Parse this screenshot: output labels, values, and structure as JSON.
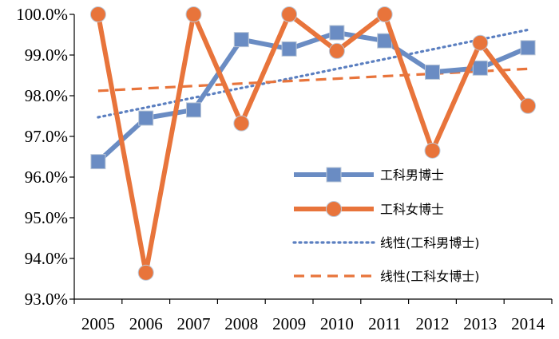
{
  "chart_data": {
    "type": "line",
    "title": "",
    "xlabel": "",
    "ylabel": "",
    "categories": [
      "2005",
      "2006",
      "2007",
      "2008",
      "2009",
      "2010",
      "2011",
      "2012",
      "2013",
      "2014"
    ],
    "ylim": [
      93.0,
      100.0
    ],
    "yticks": [
      "93.0%",
      "94.0%",
      "95.0%",
      "96.0%",
      "97.0%",
      "98.0%",
      "99.0%",
      "100.0%"
    ],
    "grid": false,
    "legend_position": "bottom-right",
    "series": [
      {
        "name": "工科男博士",
        "values": [
          96.38,
          97.45,
          97.65,
          99.38,
          99.15,
          99.55,
          99.35,
          98.58,
          98.68,
          99.18
        ],
        "color": "#6a8cc3",
        "style": "solid",
        "marker": "square"
      },
      {
        "name": "工科女博士",
        "values": [
          100.0,
          93.65,
          100.0,
          97.32,
          100.0,
          99.1,
          100.0,
          96.65,
          99.3,
          97.75
        ],
        "color": "#e8743b",
        "style": "solid",
        "marker": "circle"
      },
      {
        "name": "线性(工科男博士)",
        "values": [
          97.47,
          97.71,
          97.95,
          98.19,
          98.42,
          98.66,
          98.9,
          99.14,
          99.38,
          99.62
        ],
        "color": "#5b7fc0",
        "style": "dotted",
        "marker": "none"
      },
      {
        "name": "线性(工科女博士)",
        "values": [
          98.12,
          98.18,
          98.24,
          98.3,
          98.36,
          98.42,
          98.48,
          98.54,
          98.6,
          98.66
        ],
        "color": "#e8743b",
        "style": "dashed",
        "marker": "none"
      }
    ]
  }
}
